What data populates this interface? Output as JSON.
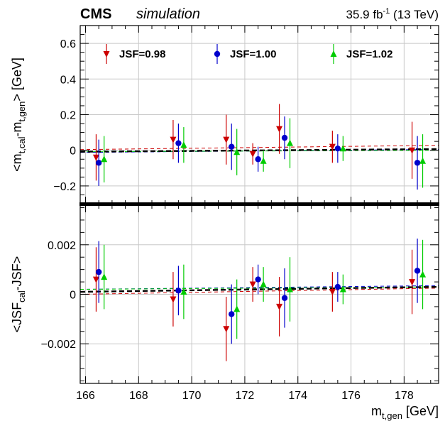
{
  "header": {
    "experiment": "CMS",
    "label": "simulation",
    "lumi": "35.9 fb",
    "lumi_sup": "-1",
    "energy": " (13 TeV)"
  },
  "colors": {
    "JSF=0.98": "#cc0000",
    "JSF=1.00": "#0000cc",
    "JSF=1.02": "#00cc00"
  },
  "chart_data": [
    {
      "type": "scatter",
      "ylabel": "<m_{t,cal}-m_{t,gen}> [GeV]",
      "xlim": [
        165.8,
        179.3
      ],
      "ylim": [
        -0.3,
        0.7
      ],
      "grid": true,
      "legend_position": "top",
      "x_ticks": [
        166,
        168,
        170,
        172,
        174,
        176,
        178
      ],
      "y_ticks": [
        -0.2,
        0,
        0.2,
        0.4,
        0.6
      ],
      "y_tick_labels": [
        "−0.2",
        "0",
        "0.2",
        "0.4",
        "0.6"
      ],
      "series": [
        {
          "name": "JSF=0.98",
          "marker": "triangle-down",
          "x": [
            166.4,
            169.3,
            171.3,
            172.3,
            173.3,
            175.3,
            178.3
          ],
          "y": [
            -0.04,
            0.06,
            0.06,
            -0.02,
            0.12,
            0.02,
            0.0
          ],
          "yerr": [
            0.13,
            0.11,
            0.14,
            0.06,
            0.14,
            0.09,
            0.16
          ],
          "fit": [
            0.004,
            0.028
          ]
        },
        {
          "name": "JSF=1.00",
          "marker": "circle",
          "x": [
            166.5,
            169.5,
            171.5,
            172.5,
            173.5,
            175.5,
            178.5
          ],
          "y": [
            -0.07,
            0.04,
            0.02,
            -0.05,
            0.07,
            0.01,
            -0.07
          ],
          "yerr": [
            0.13,
            0.11,
            0.13,
            0.07,
            0.12,
            0.08,
            0.15
          ],
          "fit": [
            -0.012,
            0.005
          ]
        },
        {
          "name": "JSF=1.02",
          "marker": "triangle-up",
          "x": [
            166.7,
            169.7,
            171.7,
            172.7,
            173.7,
            175.7,
            178.7
          ],
          "y": [
            -0.05,
            0.03,
            -0.01,
            -0.06,
            0.04,
            0.01,
            -0.06
          ],
          "yerr": [
            0.13,
            0.1,
            0.13,
            0.06,
            0.14,
            0.07,
            0.15
          ],
          "fit": [
            -0.008,
            0.0
          ]
        }
      ],
      "combined_fit": [
        -0.008,
        0.007
      ]
    },
    {
      "type": "scatter",
      "xlabel": "m_{t,gen} [GeV]",
      "ylabel": "<JSF_{cal}-JSF>",
      "xlim": [
        165.8,
        179.3
      ],
      "ylim": [
        -0.0036,
        0.0036
      ],
      "grid": true,
      "x_ticks": [
        166,
        168,
        170,
        172,
        174,
        176,
        178
      ],
      "y_ticks": [
        -0.002,
        0,
        0.002
      ],
      "y_tick_labels": [
        "−0.002",
        "0",
        "0.002"
      ],
      "series": [
        {
          "name": "JSF=0.98",
          "marker": "triangle-down",
          "x": [
            166.4,
            169.3,
            171.3,
            172.3,
            173.3,
            175.3,
            178.3
          ],
          "y": [
            0.0006,
            -0.0002,
            -0.0014,
            0.0004,
            -0.0005,
            0.0001,
            0.0005
          ],
          "yerr": [
            0.0013,
            0.0011,
            0.0013,
            0.0007,
            0.0012,
            0.0008,
            0.0013
          ],
          "fit": [
            0.0,
            0.00025
          ]
        },
        {
          "name": "JSF=1.00",
          "marker": "circle",
          "x": [
            166.5,
            169.5,
            171.5,
            172.5,
            173.5,
            175.5,
            178.5
          ],
          "y": [
            0.0009,
            0.00015,
            -0.0008,
            0.0006,
            -0.00015,
            0.0003,
            0.00095
          ],
          "yerr": [
            0.00125,
            0.001,
            0.0012,
            0.0006,
            0.0012,
            0.0006,
            0.0013
          ],
          "fit": [
            0.0002,
            0.00035
          ]
        },
        {
          "name": "JSF=1.02",
          "marker": "triangle-up",
          "x": [
            166.7,
            169.7,
            171.7,
            172.7,
            173.7,
            175.7,
            178.7
          ],
          "y": [
            0.0007,
            0.0001,
            -0.0006,
            0.0004,
            0.0002,
            0.0002,
            0.0008
          ],
          "yerr": [
            0.0013,
            0.0011,
            0.0012,
            0.0007,
            0.0013,
            0.0006,
            0.0014
          ],
          "fit": [
            0.0002,
            0.0003
          ]
        }
      ],
      "combined_fit": [
        0.0001,
        0.0003
      ]
    }
  ]
}
